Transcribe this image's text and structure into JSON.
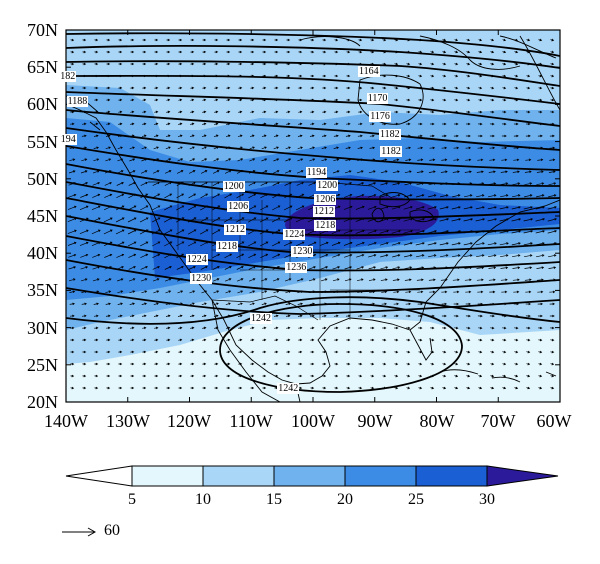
{
  "map": {
    "lat_labels": [
      "70N",
      "65N",
      "60N",
      "55N",
      "50N",
      "45N",
      "40N",
      "35N",
      "30N",
      "25N",
      "20N"
    ],
    "lon_labels": [
      "140W",
      "130W",
      "120W",
      "110W",
      "100W",
      "90W",
      "80W",
      "70W",
      "60W"
    ],
    "lat_range": [
      20,
      70
    ],
    "lon_range": [
      -140,
      -60
    ],
    "shading_colors": [
      "#e3f7fc",
      "#a9d6f7",
      "#6fb2ee",
      "#3c8ce6",
      "#1a5fd4",
      "#2b1b9a"
    ]
  },
  "contours": {
    "labels": [
      {
        "text": "1164",
        "lon": -90.6,
        "lat": 64.4
      },
      {
        "text": "182",
        "lon": -139.0,
        "lat": 63.7
      },
      {
        "text": "1188",
        "lon": -137.8,
        "lat": 60.3
      },
      {
        "text": "1170",
        "lon": -89.2,
        "lat": 60.7
      },
      {
        "text": "194",
        "lon": -138.9,
        "lat": 55.2
      },
      {
        "text": "1176",
        "lon": -88.8,
        "lat": 58.3
      },
      {
        "text": "1182",
        "lon": -87.2,
        "lat": 55.9
      },
      {
        "text": "1182",
        "lon": -87.0,
        "lat": 53.6
      },
      {
        "text": "1194",
        "lon": -99.1,
        "lat": 50.8
      },
      {
        "text": "1200",
        "lon": -112.5,
        "lat": 48.9
      },
      {
        "text": "1200",
        "lon": -97.4,
        "lat": 49.0
      },
      {
        "text": "1206",
        "lon": -97.7,
        "lat": 47.1
      },
      {
        "text": "1206",
        "lon": -111.8,
        "lat": 46.2
      },
      {
        "text": "1212",
        "lon": -97.9,
        "lat": 45.5
      },
      {
        "text": "1218",
        "lon": -97.7,
        "lat": 43.6
      },
      {
        "text": "1212",
        "lon": -112.3,
        "lat": 43.1
      },
      {
        "text": "1224",
        "lon": -102.7,
        "lat": 42.4
      },
      {
        "text": "1218",
        "lon": -113.6,
        "lat": 40.9
      },
      {
        "text": "1230",
        "lon": -101.4,
        "lat": 40.2
      },
      {
        "text": "1224",
        "lon": -118.5,
        "lat": 39.1
      },
      {
        "text": "1236",
        "lon": -102.4,
        "lat": 38.0
      },
      {
        "text": "1230",
        "lon": -117.8,
        "lat": 36.5
      },
      {
        "text": "1242",
        "lon": -108.1,
        "lat": 31.1
      },
      {
        "text": "1242",
        "lon": -103.7,
        "lat": 21.8
      }
    ]
  },
  "colorbar": {
    "ticks": [
      "5",
      "10",
      "15",
      "20",
      "25",
      "30"
    ],
    "colors": [
      "#ffffff",
      "#e3f7fc",
      "#a9d6f7",
      "#6fb2ee",
      "#3c8ce6",
      "#1a5fd4",
      "#2b1b9a"
    ]
  },
  "reference_vector": {
    "value": "60"
  }
}
